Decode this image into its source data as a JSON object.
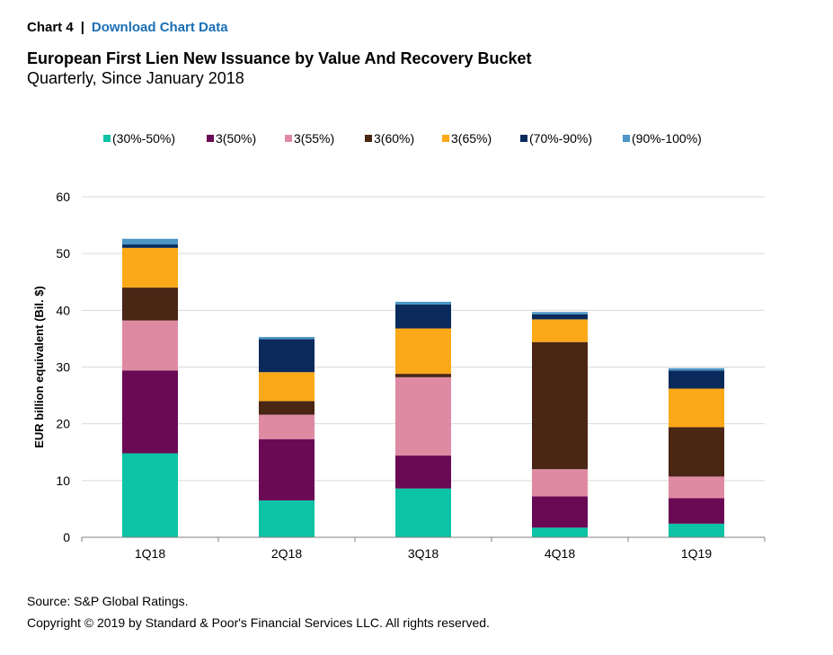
{
  "header": {
    "chart_label": "Chart 4",
    "separator": "|",
    "download_link": "Download Chart Data"
  },
  "footer": {
    "source": "Source: S&P Global Ratings.",
    "copyright": "Copyright © 2019 by Standard & Poor's Financial Services LLC. All rights reserved."
  },
  "chart_data": {
    "type": "bar",
    "stacked": true,
    "title": "European First Lien New Issuance by Value And Recovery Bucket",
    "subtitle": "Quarterly, Since January 2018",
    "xlabel": "",
    "ylabel": "EUR billion equivalent (Bil. $)",
    "ylim": [
      0,
      60
    ],
    "yticks": [
      0,
      10,
      20,
      30,
      40,
      50,
      60
    ],
    "grid": true,
    "legend_position": "top",
    "categories": [
      "1Q18",
      "2Q18",
      "3Q18",
      "4Q18",
      "1Q19"
    ],
    "series": [
      {
        "name": "(30%-50%)",
        "color": "#0cc3a6",
        "values": [
          14.8,
          6.5,
          8.6,
          1.7,
          2.4
        ]
      },
      {
        "name": "3(50%)",
        "color": "#6a0a55",
        "values": [
          14.6,
          10.8,
          5.8,
          5.5,
          4.5
        ]
      },
      {
        "name": "3(55%)",
        "color": "#df8aa3",
        "values": [
          8.8,
          4.3,
          13.8,
          4.8,
          3.8
        ]
      },
      {
        "name": "3(60%)",
        "color": "#4a2614",
        "values": [
          5.8,
          2.4,
          0.6,
          22.4,
          8.7
        ]
      },
      {
        "name": "3(65%)",
        "color": "#fba918",
        "values": [
          7.0,
          5.1,
          8.0,
          4.0,
          6.8
        ]
      },
      {
        "name": "(70%-90%)",
        "color": "#0a2a5c",
        "values": [
          0.6,
          5.8,
          4.2,
          0.9,
          3.2
        ]
      },
      {
        "name": "(90%-100%)",
        "color": "#4c96c6",
        "values": [
          1.0,
          0.4,
          0.5,
          0.4,
          0.4
        ]
      }
    ]
  }
}
